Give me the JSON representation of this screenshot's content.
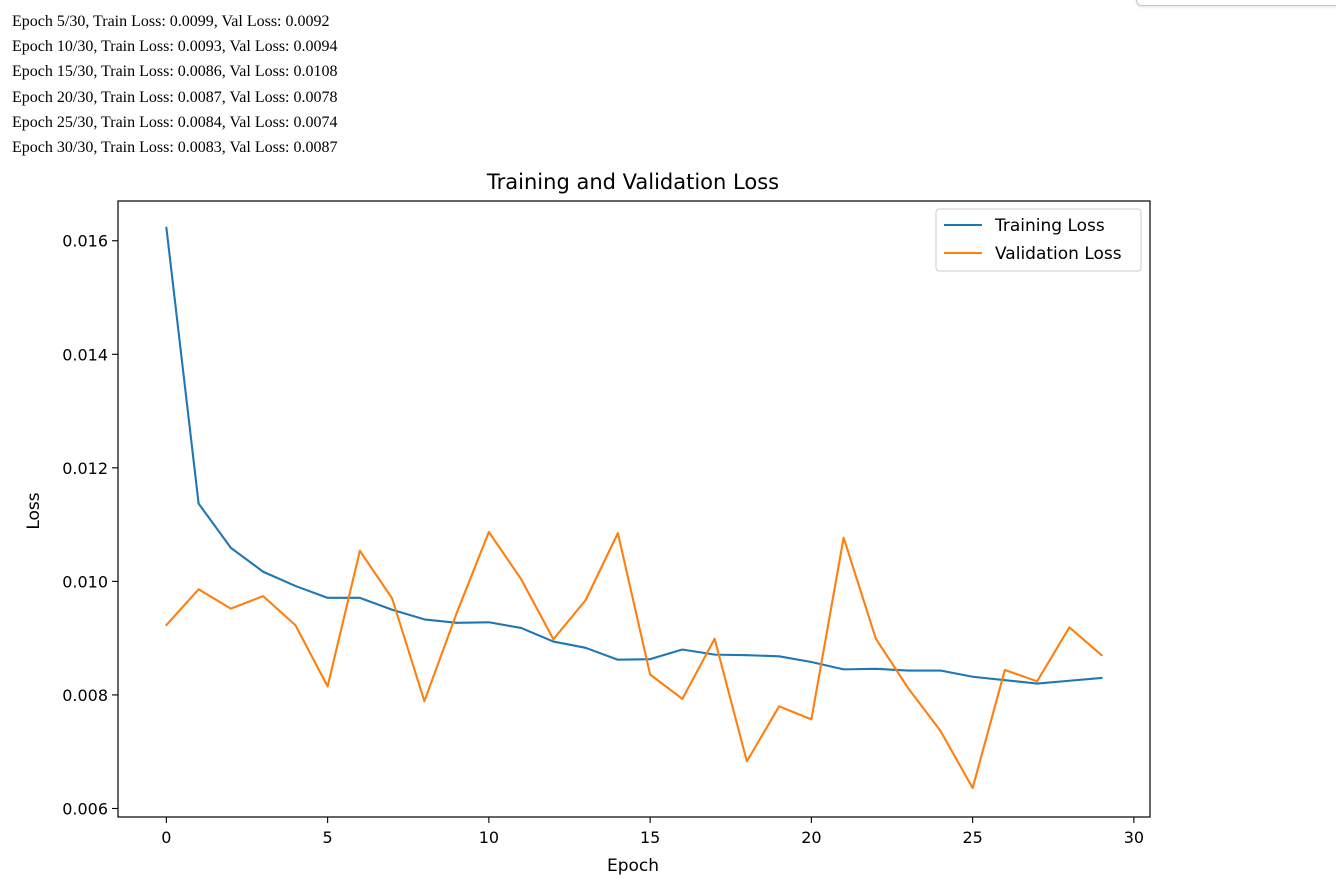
{
  "output_log": [
    "Epoch 5/30, Train Loss: 0.0099, Val Loss: 0.0092",
    "Epoch 10/30, Train Loss: 0.0093, Val Loss: 0.0094",
    "Epoch 15/30, Train Loss: 0.0086, Val Loss: 0.0108",
    "Epoch 20/30, Train Loss: 0.0087, Val Loss: 0.0078",
    "Epoch 25/30, Train Loss: 0.0084, Val Loss: 0.0074",
    "Epoch 30/30, Train Loss: 0.0083, Val Loss: 0.0087"
  ],
  "chart_data": {
    "type": "line",
    "title": "Training and Validation Loss",
    "xlabel": "Epoch",
    "ylabel": "Loss",
    "xlim": [
      -1.5,
      30.5
    ],
    "ylim": [
      0.00585,
      0.0167
    ],
    "xticks": [
      0,
      5,
      10,
      15,
      20,
      25,
      30
    ],
    "yticks": [
      0.006,
      0.008,
      0.01,
      0.012,
      0.014,
      0.016
    ],
    "ytick_labels": [
      "0.006",
      "0.008",
      "0.010",
      "0.012",
      "0.014",
      "0.016"
    ],
    "grid": false,
    "legend_position": "top-right",
    "x": [
      0,
      1,
      2,
      3,
      4,
      5,
      6,
      7,
      8,
      9,
      10,
      11,
      12,
      13,
      14,
      15,
      16,
      17,
      18,
      19,
      20,
      21,
      22,
      23,
      24,
      25,
      26,
      27,
      28,
      29
    ],
    "series": [
      {
        "name": "Training Loss",
        "color": "#1f77b4",
        "values": [
          0.01623,
          0.01137,
          0.01059,
          0.01017,
          0.00992,
          0.00971,
          0.00971,
          0.0095,
          0.00933,
          0.00927,
          0.00928,
          0.00918,
          0.00894,
          0.00883,
          0.00862,
          0.00863,
          0.0088,
          0.00871,
          0.0087,
          0.00868,
          0.00858,
          0.00845,
          0.00846,
          0.00843,
          0.00843,
          0.00832,
          0.00826,
          0.0082,
          0.00825,
          0.0083
        ]
      },
      {
        "name": "Validation Loss",
        "color": "#ff7f0e",
        "values": [
          0.00923,
          0.00986,
          0.00952,
          0.00974,
          0.00923,
          0.00815,
          0.01054,
          0.0097,
          0.00789,
          0.00944,
          0.01087,
          0.01004,
          0.00898,
          0.00967,
          0.01085,
          0.00836,
          0.00793,
          0.00899,
          0.00683,
          0.0078,
          0.00757,
          0.01077,
          0.00899,
          0.00812,
          0.00737,
          0.00636,
          0.00844,
          0.00824,
          0.00919,
          0.0087
        ]
      }
    ]
  }
}
